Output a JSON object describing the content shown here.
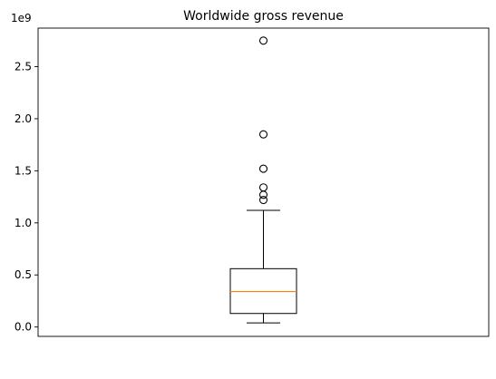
{
  "chart_data": {
    "type": "box",
    "title": "Worldwide gross revenue",
    "scale_label": "1e9",
    "xlabel": "",
    "ylabel": "",
    "ylim": [
      -0.09,
      2.87
    ],
    "yticks": [
      0.0,
      0.5,
      1.0,
      1.5,
      2.0,
      2.5
    ],
    "ytick_labels": [
      "0.0",
      "0.5",
      "1.0",
      "1.5",
      "2.0",
      "2.5"
    ],
    "x_ticks_visible": false,
    "grid": false,
    "box": {
      "whisker_low": 0.04,
      "q1": 0.13,
      "median": 0.34,
      "q3": 0.56,
      "whisker_high": 1.12
    },
    "outliers": [
      1.22,
      1.27,
      1.34,
      1.52,
      1.85,
      2.75
    ],
    "colors": {
      "box": "#000000",
      "median": "#ff7f0e",
      "outlier_edge": "#000000"
    }
  }
}
